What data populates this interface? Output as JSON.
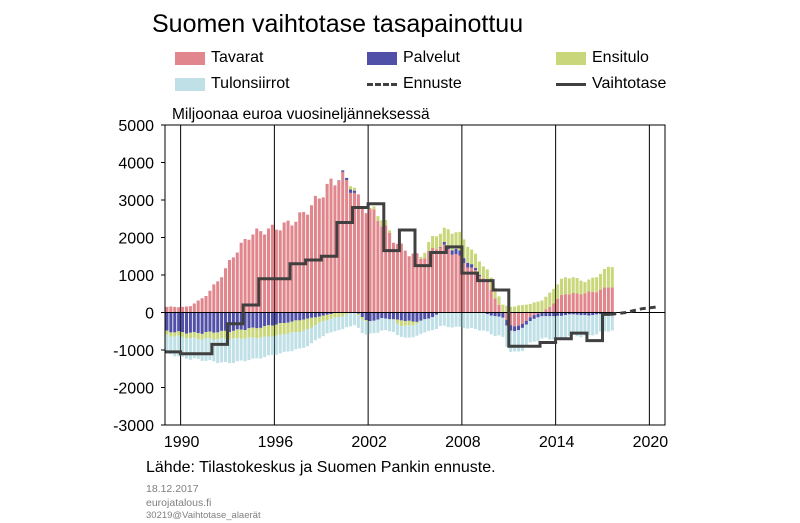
{
  "title": "Suomen vaihtotase tasapainottuu",
  "legend": [
    {
      "label": "Tavarat",
      "kind": "bar",
      "color": "#e0868c"
    },
    {
      "label": "Palvelut",
      "kind": "bar",
      "color": "#5050a8"
    },
    {
      "label": "Ensitulo",
      "kind": "bar",
      "color": "#c9d77a"
    },
    {
      "label": "Tulonsiirrot",
      "kind": "bar",
      "color": "#bfe0e6"
    },
    {
      "label": "Ennuste",
      "kind": "dashed",
      "color": "#404040"
    },
    {
      "label": "Vaihtotase",
      "kind": "line",
      "color": "#404040"
    }
  ],
  "unit_label": "Miljoonaa euroa vuosineljänneksessä",
  "source": "Lähde: Tilastokeskus ja Suomen Pankin ennuste.",
  "date": "18.12.2017",
  "site": "eurojatalous.fi",
  "code": "30219@Vaihtotase_alaerät",
  "chart_data": {
    "type": "bar",
    "stacked": true,
    "x_axis": {
      "min": 1989,
      "max": 2021,
      "ticks": [
        1990,
        1996,
        2002,
        2008,
        2014,
        2020
      ]
    },
    "y_axis": {
      "min": -3000,
      "max": 5000,
      "ticks": [
        5000,
        4000,
        3000,
        2000,
        1000,
        0,
        -1000,
        -2000,
        -3000
      ]
    },
    "grid": {
      "vertical": true,
      "horizontal": false
    },
    "bar_start": 1989.0,
    "bar_step": 0.25,
    "bar_count": 115,
    "series": [
      {
        "name": "Tavarat",
        "color": "#e0868c",
        "anchors": [
          [
            1989,
            150
          ],
          [
            1990.5,
            150
          ],
          [
            1991.5,
            400
          ],
          [
            1992.5,
            900
          ],
          [
            1993.5,
            1600
          ],
          [
            1994.5,
            2100
          ],
          [
            1995.5,
            2200
          ],
          [
            1996.5,
            2300
          ],
          [
            1997.5,
            2500
          ],
          [
            1998.5,
            2900
          ],
          [
            1999.5,
            3400
          ],
          [
            2000.25,
            3650
          ],
          [
            2001,
            3300
          ],
          [
            2001.5,
            2900
          ],
          [
            2002.5,
            2600
          ],
          [
            2003.5,
            2000
          ],
          [
            2004.5,
            1600
          ],
          [
            2005.5,
            1450
          ],
          [
            2006.5,
            1800
          ],
          [
            2007.5,
            1600
          ],
          [
            2008.5,
            1200
          ],
          [
            2009.5,
            900
          ],
          [
            2010,
            500
          ],
          [
            2010.5,
            100
          ],
          [
            2011,
            -300
          ],
          [
            2011.5,
            -400
          ],
          [
            2012.5,
            -100
          ],
          [
            2013.5,
            100
          ],
          [
            2014.5,
            500
          ],
          [
            2015.5,
            500
          ],
          [
            2016.5,
            550
          ],
          [
            2017.5,
            700
          ]
        ]
      },
      {
        "name": "Palvelut",
        "color": "#5050a8",
        "anchors": [
          [
            1989,
            -500
          ],
          [
            1991,
            -550
          ],
          [
            1993,
            -500
          ],
          [
            1995,
            -400
          ],
          [
            1997,
            -250
          ],
          [
            1999,
            -100
          ],
          [
            2001,
            100
          ],
          [
            2002,
            -250
          ],
          [
            2003,
            -150
          ],
          [
            2004,
            -200
          ],
          [
            2005,
            -250
          ],
          [
            2006,
            -150
          ],
          [
            2007,
            100
          ],
          [
            2008,
            150
          ],
          [
            2009,
            50
          ],
          [
            2010,
            -100
          ],
          [
            2011,
            -150
          ],
          [
            2012,
            -100
          ],
          [
            2013,
            -100
          ],
          [
            2014,
            -100
          ],
          [
            2015,
            -50
          ],
          [
            2016,
            -80
          ],
          [
            2017.5,
            -20
          ]
        ]
      },
      {
        "name": "Ensitulo",
        "color": "#c9d77a",
        "anchors": [
          [
            1989,
            -100
          ],
          [
            1993,
            -200
          ],
          [
            1996,
            -300
          ],
          [
            1998,
            -300
          ],
          [
            1999,
            -150
          ],
          [
            2000.5,
            -100
          ],
          [
            2001,
            150
          ],
          [
            2001.5,
            -100
          ],
          [
            2003,
            200
          ],
          [
            2004,
            -150
          ],
          [
            2005,
            -100
          ],
          [
            2006,
            300
          ],
          [
            2007,
            400
          ],
          [
            2008,
            500
          ],
          [
            2009,
            350
          ],
          [
            2010,
            300
          ],
          [
            2011,
            150
          ],
          [
            2012,
            200
          ],
          [
            2013,
            300
          ],
          [
            2014,
            400
          ],
          [
            2015,
            450
          ],
          [
            2016,
            300
          ],
          [
            2017.5,
            550
          ]
        ]
      },
      {
        "name": "Tulonsiirrot",
        "color": "#bfe0e6",
        "anchors": [
          [
            1989,
            -450
          ],
          [
            1990,
            -550
          ],
          [
            1991,
            -550
          ],
          [
            1992,
            -600
          ],
          [
            1993,
            -650
          ],
          [
            1994,
            -600
          ],
          [
            1995,
            -550
          ],
          [
            1996,
            -500
          ],
          [
            1998,
            -450
          ],
          [
            2000,
            -350
          ],
          [
            2002,
            -350
          ],
          [
            2004,
            -300
          ],
          [
            2006,
            -350
          ],
          [
            2008,
            -400
          ],
          [
            2010,
            -500
          ],
          [
            2011,
            -550
          ],
          [
            2012,
            -600
          ],
          [
            2014,
            -600
          ],
          [
            2016,
            -550
          ],
          [
            2017.5,
            -450
          ]
        ]
      }
    ],
    "vaihtotase": {
      "name": "Vaihtotase",
      "color": "#404040",
      "steps": [
        [
          1989,
          -1050
        ],
        [
          1990,
          -1100
        ],
        [
          1991,
          -1100
        ],
        [
          1992,
          -850
        ],
        [
          1993,
          -300
        ],
        [
          1994,
          200
        ],
        [
          1995,
          900
        ],
        [
          1996,
          900
        ],
        [
          1997,
          1300
        ],
        [
          1998,
          1400
        ],
        [
          1999,
          1500
        ],
        [
          2000,
          2400
        ],
        [
          2001,
          2800
        ],
        [
          2002,
          2900
        ],
        [
          2003,
          1650
        ],
        [
          2004,
          2200
        ],
        [
          2005,
          1250
        ],
        [
          2006,
          1600
        ],
        [
          2007,
          1750
        ],
        [
          2008,
          1050
        ],
        [
          2009,
          850
        ],
        [
          2010,
          600
        ],
        [
          2011,
          -900
        ],
        [
          2012,
          -900
        ],
        [
          2013,
          -800
        ],
        [
          2014,
          -700
        ],
        [
          2015,
          -550
        ],
        [
          2016,
          -750
        ],
        [
          2017,
          -50
        ],
        [
          2017.5,
          -50
        ]
      ]
    },
    "ennuste": {
      "name": "Ennuste",
      "color": "#404040",
      "points": [
        [
          2017.5,
          -50
        ],
        [
          2018.5,
          0
        ],
        [
          2019.5,
          100
        ],
        [
          2020.5,
          150
        ]
      ]
    }
  }
}
